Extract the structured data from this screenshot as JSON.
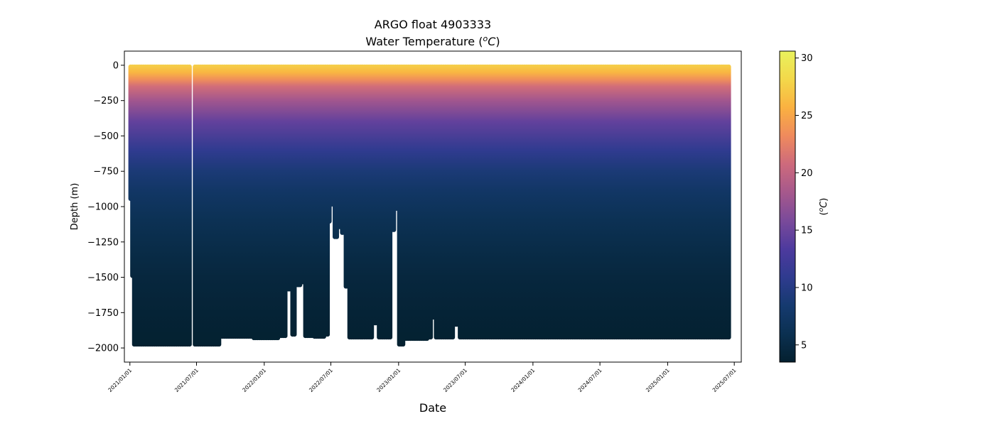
{
  "chart_data": {
    "type": "heatmap",
    "title": "ARGO float 4903333",
    "subtitle_prefix": "Water Temperature (",
    "subtitle_unit_base": "C",
    "subtitle_unit_sup": "o",
    "subtitle_suffix": ")",
    "xlabel": "Date",
    "ylabel": "Depth (m)",
    "colorbar_label_open": "(",
    "colorbar_label_sup": "o",
    "colorbar_label_base": "C",
    "colorbar_label_close": ")",
    "colormap": "thermal",
    "colormap_stops": [
      "#04202f",
      "#0b3051",
      "#153a6f",
      "#2f3b8f",
      "#4d3a9e",
      "#7a4a9a",
      "#a6588c",
      "#cd6a7c",
      "#ef8a5d",
      "#fab141",
      "#f3d84a",
      "#e9f25d"
    ],
    "x_ticks": [
      "2021/01/01",
      "2021/07/01",
      "2022/01/01",
      "2022/07/01",
      "2023/01/01",
      "2023/07/01",
      "2024/01/01",
      "2024/07/01",
      "2025/01/01",
      "2025/07/01"
    ],
    "x_range": [
      "2020-12-17",
      "2025-07-20"
    ],
    "y_ticks": [
      0,
      -250,
      -500,
      -750,
      -1000,
      -1250,
      -1500,
      -1750,
      -2000
    ],
    "y_range": [
      -2100,
      100
    ],
    "colorbar_ticks": [
      5,
      10,
      15,
      20,
      25,
      30
    ],
    "colorbar_range": [
      3.5,
      30.6
    ],
    "profile_interval_days": 5,
    "profiles_start": "2021-01-03",
    "profiles_end": "2025-06-18",
    "profile_gaps": [
      [
        "2021-06-14",
        "2021-06-24"
      ]
    ],
    "surface_temperature": 27,
    "temperature_profile": [
      {
        "depth": 0,
        "temp": 27.5
      },
      {
        "depth": -50,
        "temp": 26.0
      },
      {
        "depth": -100,
        "temp": 23.5
      },
      {
        "depth": -150,
        "temp": 21.0
      },
      {
        "depth": -250,
        "temp": 18.0
      },
      {
        "depth": -400,
        "temp": 14.5
      },
      {
        "depth": -600,
        "temp": 11.0
      },
      {
        "depth": -750,
        "temp": 9.0
      },
      {
        "depth": -900,
        "temp": 7.5
      },
      {
        "depth": -1100,
        "temp": 6.2
      },
      {
        "depth": -1300,
        "temp": 5.3
      },
      {
        "depth": -1500,
        "temp": 4.6
      },
      {
        "depth": -1750,
        "temp": 4.0
      },
      {
        "depth": -2000,
        "temp": 3.6
      }
    ],
    "max_depths": [
      {
        "date": "2021-01-03",
        "depth": -960
      },
      {
        "date": "2021-01-08",
        "depth": -1505
      },
      {
        "date": "2021-01-13",
        "depth": -1990
      },
      {
        "date": "2021-06-12",
        "depth": -1990
      },
      {
        "date": "2021-06-26",
        "depth": -1990
      },
      {
        "date": "2021-08-20",
        "depth": -1990
      },
      {
        "date": "2021-09-01",
        "depth": -1935
      },
      {
        "date": "2021-12-01",
        "depth": -1945
      },
      {
        "date": "2022-02-10",
        "depth": -1930
      },
      {
        "date": "2022-03-01",
        "depth": -1600
      },
      {
        "date": "2022-03-15",
        "depth": -1920
      },
      {
        "date": "2022-03-28",
        "depth": -1570
      },
      {
        "date": "2022-04-10",
        "depth": -1550
      },
      {
        "date": "2022-04-22",
        "depth": -1930
      },
      {
        "date": "2022-05-15",
        "depth": -1935
      },
      {
        "date": "2022-06-15",
        "depth": -1920
      },
      {
        "date": "2022-06-25",
        "depth": -1120
      },
      {
        "date": "2022-07-01",
        "depth": -1000
      },
      {
        "date": "2022-07-10",
        "depth": -1230
      },
      {
        "date": "2022-07-20",
        "depth": -1160
      },
      {
        "date": "2022-08-01",
        "depth": -1200
      },
      {
        "date": "2022-08-10",
        "depth": -1580
      },
      {
        "date": "2022-08-20",
        "depth": -1940
      },
      {
        "date": "2022-10-10",
        "depth": -1940
      },
      {
        "date": "2022-10-25",
        "depth": -1840
      },
      {
        "date": "2022-11-05",
        "depth": -1940
      },
      {
        "date": "2022-12-01",
        "depth": -1940
      },
      {
        "date": "2022-12-10",
        "depth": -1180
      },
      {
        "date": "2022-12-20",
        "depth": -1030
      },
      {
        "date": "2022-12-30",
        "depth": -1990
      },
      {
        "date": "2023-01-15",
        "depth": -1950
      },
      {
        "date": "2023-03-20",
        "depth": -1940
      },
      {
        "date": "2023-04-01",
        "depth": -1800
      },
      {
        "date": "2023-04-10",
        "depth": -1940
      },
      {
        "date": "2023-05-20",
        "depth": -1940
      },
      {
        "date": "2023-06-01",
        "depth": -1850
      },
      {
        "date": "2023-06-15",
        "depth": -1940
      },
      {
        "date": "2025-06-18",
        "depth": -1945
      }
    ]
  }
}
